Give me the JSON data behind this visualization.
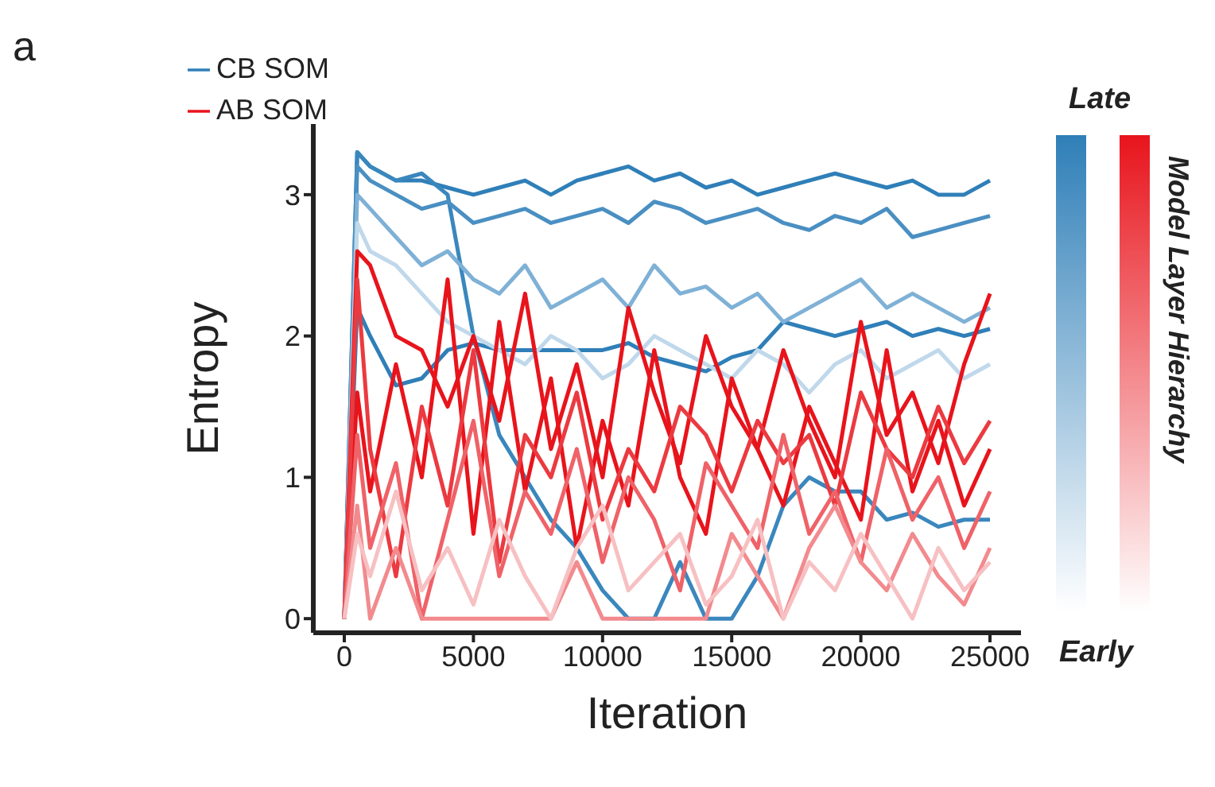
{
  "chart_data": {
    "type": "line",
    "title": "a",
    "xlabel": "Iteration",
    "ylabel": "Entropy",
    "clabel": "Model Layer Hierarchy",
    "annotations": [
      "Late",
      "Early"
    ],
    "x": [
      0,
      500,
      1000,
      2000,
      3000,
      4000,
      5000,
      6000,
      7000,
      8000,
      9000,
      10000,
      11000,
      12000,
      13000,
      14000,
      15000,
      16000,
      17000,
      18000,
      19000,
      20000,
      21000,
      22000,
      23000,
      24000,
      25000
    ],
    "xlim": [
      -1200,
      26200
    ],
    "xticks": [
      0,
      5000,
      10000,
      15000,
      20000,
      25000
    ],
    "ylim": [
      -0.1,
      3.5
    ],
    "yticks": [
      0,
      1,
      2,
      3
    ],
    "grid": false,
    "legend": "top left",
    "marker": "none",
    "line_style": "solid",
    "series": [
      {
        "name": "CB SOM",
        "color": "#2f7fb8",
        "values": [
          0,
          3.3,
          3.2,
          3.1,
          3.1,
          3.05,
          3.0,
          3.05,
          3.1,
          3.0,
          3.1,
          3.15,
          3.2,
          3.1,
          3.15,
          3.05,
          3.1,
          3.0,
          3.05,
          3.1,
          3.15,
          3.1,
          3.05,
          3.1,
          3.0,
          3.0,
          3.1
        ]
      },
      {
        "color": "#2f7fb8",
        "values": [
          0,
          2.2,
          2.0,
          1.65,
          1.7,
          1.9,
          1.95,
          1.9,
          1.9,
          1.9,
          1.9,
          1.9,
          1.95,
          1.85,
          1.8,
          1.75,
          1.85,
          1.9,
          2.1,
          2.05,
          2.0,
          2.05,
          2.1,
          2.0,
          2.05,
          2.0,
          2.05
        ]
      },
      {
        "color": "#3a87bd",
        "values": [
          0,
          3.3,
          3.2,
          3.1,
          3.15,
          3.0,
          2.0,
          1.3,
          1.0,
          0.7,
          0.5,
          0.2,
          0.0,
          0.0,
          0.4,
          0.0,
          0.0,
          0.3,
          0.8,
          1.0,
          0.9,
          0.9,
          0.7,
          0.75,
          0.65,
          0.7,
          0.7
        ]
      },
      {
        "color": "#4a8fc2",
        "values": [
          0,
          3.2,
          3.1,
          3.0,
          2.9,
          2.95,
          2.8,
          2.85,
          2.9,
          2.8,
          2.85,
          2.9,
          2.8,
          2.95,
          2.9,
          2.8,
          2.85,
          2.9,
          2.8,
          2.75,
          2.85,
          2.8,
          2.9,
          2.7,
          2.75,
          2.8,
          2.85
        ]
      },
      {
        "color": "#7fb1d6",
        "values": [
          0,
          3.0,
          2.9,
          2.7,
          2.5,
          2.6,
          2.4,
          2.3,
          2.5,
          2.2,
          2.3,
          2.4,
          2.2,
          2.5,
          2.3,
          2.35,
          2.2,
          2.3,
          2.1,
          2.2,
          2.3,
          2.4,
          2.2,
          2.3,
          2.2,
          2.1,
          2.2
        ]
      },
      {
        "color": "#c0d8eb",
        "values": [
          0,
          2.8,
          2.6,
          2.5,
          2.3,
          2.1,
          2.0,
          1.9,
          1.8,
          2.0,
          1.9,
          1.7,
          1.8,
          2.0,
          1.9,
          1.8,
          1.7,
          1.9,
          1.8,
          1.6,
          1.8,
          1.9,
          1.7,
          1.8,
          1.9,
          1.7,
          1.8
        ]
      },
      {
        "name": "AB SOM",
        "color": "#e8141c",
        "values": [
          0,
          2.6,
          2.5,
          2.0,
          1.9,
          1.5,
          2.0,
          1.4,
          2.3,
          1.2,
          1.8,
          1.0,
          2.2,
          1.6,
          1.1,
          2.0,
          1.5,
          1.2,
          1.9,
          1.4,
          1.0,
          2.1,
          1.3,
          1.6,
          1.1,
          1.8,
          2.3
        ]
      },
      {
        "color": "#e8141c",
        "values": [
          0,
          1.6,
          0.9,
          1.8,
          1.0,
          2.4,
          0.6,
          2.1,
          0.9,
          1.7,
          0.5,
          1.4,
          0.8,
          1.9,
          1.0,
          0.6,
          1.7,
          1.2,
          0.8,
          1.5,
          1.1,
          0.7,
          1.9,
          0.9,
          1.4,
          0.8,
          1.2
        ]
      },
      {
        "color": "#eb3a40",
        "values": [
          0,
          2.4,
          1.2,
          0.3,
          1.5,
          0.8,
          1.9,
          0.4,
          1.3,
          1.0,
          1.6,
          0.7,
          1.2,
          0.9,
          1.5,
          1.3,
          0.9,
          1.4,
          1.1,
          1.3,
          0.8,
          1.6,
          1.2,
          1.0,
          1.5,
          1.1,
          1.4
        ]
      },
      {
        "color": "#ef6268",
        "values": [
          0,
          1.3,
          0.5,
          1.1,
          0.0,
          0.7,
          1.4,
          0.3,
          0.9,
          0.6,
          1.2,
          0.4,
          1.0,
          0.7,
          0.2,
          1.1,
          0.8,
          0.5,
          1.3,
          0.6,
          0.9,
          0.4,
          1.2,
          0.7,
          1.0,
          0.5,
          0.9
        ]
      },
      {
        "color": "#f28a8e",
        "values": [
          0,
          0.8,
          0.0,
          0.5,
          0.0,
          0.0,
          0.0,
          0.0,
          0.0,
          0.0,
          0.4,
          0.0,
          0.0,
          0.0,
          0.0,
          0.0,
          0.6,
          0.3,
          0.0,
          0.5,
          0.8,
          0.4,
          0.2,
          0.6,
          0.3,
          0.1,
          0.5
        ]
      },
      {
        "color": "#f7c0c2",
        "values": [
          0,
          0.6,
          0.3,
          0.9,
          0.2,
          0.5,
          0.1,
          0.7,
          0.3,
          0.0,
          0.5,
          0.8,
          0.2,
          0.4,
          0.6,
          0.1,
          0.3,
          0.7,
          0.0,
          0.4,
          0.2,
          0.6,
          0.3,
          0.0,
          0.5,
          0.2,
          0.4
        ]
      }
    ]
  }
}
